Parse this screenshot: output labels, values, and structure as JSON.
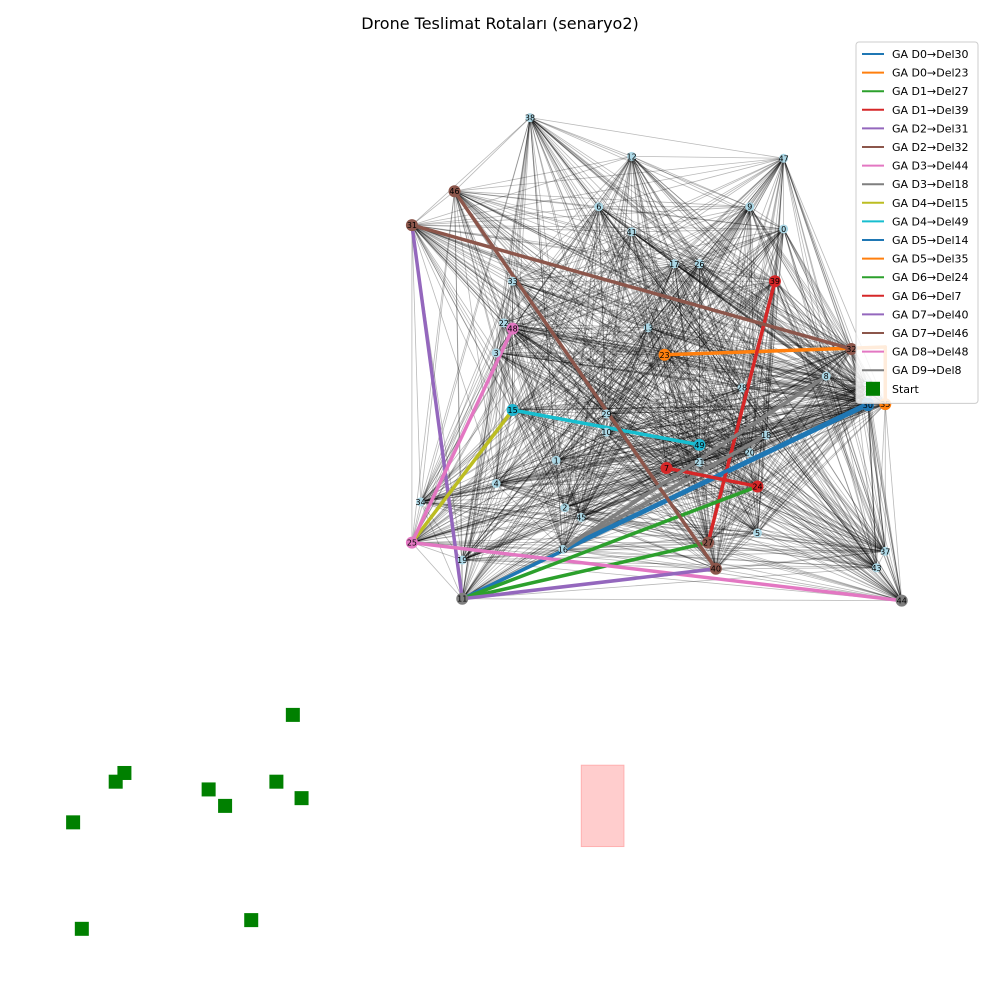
{
  "chart_data": {
    "type": "scatter",
    "title": "Drone Teslimat Rotaları (senaryo2)",
    "xlim": [
      0,
      100
    ],
    "ylim": [
      0,
      100
    ],
    "axes_visible": false,
    "legend_placement": "top-right",
    "colors": {
      "node_fill": "#add8e6",
      "edge": "#000000",
      "start_marker": "#008000",
      "no_fly_zone": "#ffc8c8"
    },
    "nodes": [
      {
        "id": "0",
        "x": 79.3,
        "y": 78.0,
        "color": "#add8e6"
      },
      {
        "id": "1",
        "x": 55.8,
        "y": 54.1,
        "color": "#add8e6"
      },
      {
        "id": "2",
        "x": 56.7,
        "y": 49.2,
        "color": "#add8e6"
      },
      {
        "id": "3",
        "x": 49.6,
        "y": 65.2,
        "color": "#add8e6"
      },
      {
        "id": "4",
        "x": 49.6,
        "y": 51.7,
        "color": "#add8e6"
      },
      {
        "id": "5",
        "x": 76.6,
        "y": 46.6,
        "color": "#add8e6"
      },
      {
        "id": "6",
        "x": 60.2,
        "y": 80.3,
        "color": "#add8e6"
      },
      {
        "id": "7",
        "x": 67.2,
        "y": 53.3,
        "color": "#d62728"
      },
      {
        "id": "8",
        "x": 83.7,
        "y": 62.8,
        "color": "#add8e6"
      },
      {
        "id": "9",
        "x": 75.8,
        "y": 80.3,
        "color": "#add8e6"
      },
      {
        "id": "10",
        "x": 61.0,
        "y": 57.0,
        "color": "#add8e6"
      },
      {
        "id": "11",
        "x": 46.1,
        "y": 39.8,
        "color": "#7f7f7f"
      },
      {
        "id": "12",
        "x": 63.6,
        "y": 85.5,
        "color": "#add8e6"
      },
      {
        "id": "13",
        "x": 65.3,
        "y": 67.8,
        "color": "#add8e6"
      },
      {
        "id": "14",
        "x": 88.0,
        "y": 60.0,
        "color": "#1f77b4"
      },
      {
        "id": "15",
        "x": 51.3,
        "y": 59.3,
        "color": "#1fb4cf"
      },
      {
        "id": "16",
        "x": 56.5,
        "y": 44.9,
        "color": "#add8e6"
      },
      {
        "id": "17",
        "x": 68.0,
        "y": 74.4,
        "color": "#add8e6"
      },
      {
        "id": "18",
        "x": 77.5,
        "y": 56.7,
        "color": "#add8e6"
      },
      {
        "id": "19",
        "x": 46.1,
        "y": 43.8,
        "color": "#add8e6"
      },
      {
        "id": "20",
        "x": 75.8,
        "y": 54.9,
        "color": "#add8e6"
      },
      {
        "id": "21",
        "x": 70.6,
        "y": 53.9,
        "color": "#add8e6"
      },
      {
        "id": "22",
        "x": 50.4,
        "y": 68.3,
        "color": "#add8e6"
      },
      {
        "id": "23",
        "x": 67.0,
        "y": 65.0,
        "color": "#ff7f0e"
      },
      {
        "id": "24",
        "x": 76.6,
        "y": 51.4,
        "color": "#d62728"
      },
      {
        "id": "25",
        "x": 40.9,
        "y": 45.6,
        "color": "#e377c2"
      },
      {
        "id": "26",
        "x": 70.6,
        "y": 74.4,
        "color": "#add8e6"
      },
      {
        "id": "27",
        "x": 71.5,
        "y": 45.6,
        "color": "#8c564b"
      },
      {
        "id": "28",
        "x": 75.0,
        "y": 61.6,
        "color": "#add8e6"
      },
      {
        "id": "29",
        "x": 61.0,
        "y": 58.9,
        "color": "#add8e6"
      },
      {
        "id": "30",
        "x": 88.0,
        "y": 59.8,
        "color": "#1f77b4"
      },
      {
        "id": "31",
        "x": 40.9,
        "y": 78.4,
        "color": "#8c564b"
      },
      {
        "id": "32",
        "x": 86.3,
        "y": 65.6,
        "color": "#8c564b"
      },
      {
        "id": "33",
        "x": 51.3,
        "y": 72.6,
        "color": "#add8e6"
      },
      {
        "id": "34",
        "x": 41.8,
        "y": 49.8,
        "color": "#add8e6"
      },
      {
        "id": "35",
        "x": 89.8,
        "y": 59.9,
        "color": "#ff7f0e"
      },
      {
        "id": "36",
        "x": 88.0,
        "y": 62.0,
        "color": "#add8e6"
      },
      {
        "id": "37",
        "x": 89.8,
        "y": 44.7,
        "color": "#add8e6"
      },
      {
        "id": "38",
        "x": 53.1,
        "y": 89.5,
        "color": "#add8e6"
      },
      {
        "id": "39",
        "x": 78.4,
        "y": 72.6,
        "color": "#d62728"
      },
      {
        "id": "40",
        "x": 72.3,
        "y": 42.9,
        "color": "#8c564b"
      },
      {
        "id": "41",
        "x": 63.6,
        "y": 77.7,
        "color": "#add8e6"
      },
      {
        "id": "42",
        "x": 88.0,
        "y": 61.0,
        "color": "#add8e6"
      },
      {
        "id": "43",
        "x": 88.9,
        "y": 43.0,
        "color": "#add8e6"
      },
      {
        "id": "44",
        "x": 91.5,
        "y": 39.6,
        "color": "#7f7f7f"
      },
      {
        "id": "45",
        "x": 58.4,
        "y": 48.2,
        "color": "#add8e6"
      },
      {
        "id": "46",
        "x": 45.3,
        "y": 81.9,
        "color": "#8c564b"
      },
      {
        "id": "47",
        "x": 79.3,
        "y": 85.3,
        "color": "#add8e6"
      },
      {
        "id": "48",
        "x": 51.3,
        "y": 67.7,
        "color": "#e377c2"
      },
      {
        "id": "49",
        "x": 70.6,
        "y": 55.7,
        "color": "#1fb4cf"
      }
    ],
    "routes": [
      {
        "name": "GA D0→Del30",
        "color": "#1f77b4",
        "path": [
          [
            46.1,
            39.8
          ],
          [
            88.0,
            59.8
          ]
        ]
      },
      {
        "name": "GA D0→Del23",
        "color": "#ff7f0e",
        "path": [
          [
            89.8,
            65.8
          ],
          [
            67.0,
            65.0
          ]
        ]
      },
      {
        "name": "GA D1→Del27",
        "color": "#2ca02c",
        "path": [
          [
            46.1,
            39.8
          ],
          [
            71.5,
            45.6
          ]
        ]
      },
      {
        "name": "GA D1→Del39",
        "color": "#d62728",
        "path": [
          [
            71.5,
            45.6
          ],
          [
            78.4,
            72.6
          ]
        ]
      },
      {
        "name": "GA D2→Del31",
        "color": "#9467bd",
        "path": [
          [
            46.1,
            39.8
          ],
          [
            40.9,
            78.4
          ]
        ]
      },
      {
        "name": "GA D2→Del32",
        "color": "#8c564b",
        "path": [
          [
            40.9,
            78.4
          ],
          [
            86.3,
            65.6
          ]
        ]
      },
      {
        "name": "GA D3→Del44",
        "color": "#e377c2",
        "path": [
          [
            40.9,
            45.6
          ],
          [
            91.5,
            39.6
          ]
        ]
      },
      {
        "name": "GA D3→Del18",
        "color": "#7f7f7f",
        "path": [
          [
            56.5,
            44.9
          ],
          [
            77.5,
            56.7
          ]
        ]
      },
      {
        "name": "GA D4→Del15",
        "color": "#bcbd22",
        "path": [
          [
            40.9,
            45.6
          ],
          [
            51.3,
            59.3
          ]
        ]
      },
      {
        "name": "GA D4→Del49",
        "color": "#17becf",
        "path": [
          [
            51.3,
            59.3
          ],
          [
            70.6,
            55.7
          ]
        ]
      },
      {
        "name": "GA D5→Del14",
        "color": "#1f77b4",
        "path": [
          [
            56.5,
            44.9
          ],
          [
            88.0,
            60.0
          ]
        ]
      },
      {
        "name": "GA D5→Del35",
        "color": "#ff7f0e",
        "path": [
          [
            89.8,
            65.8
          ],
          [
            89.8,
            59.9
          ]
        ]
      },
      {
        "name": "GA D6→Del24",
        "color": "#2ca02c",
        "path": [
          [
            46.1,
            39.8
          ],
          [
            76.6,
            51.4
          ]
        ]
      },
      {
        "name": "GA D6→Del7",
        "color": "#d62728",
        "path": [
          [
            76.6,
            51.4
          ],
          [
            67.2,
            53.3
          ]
        ]
      },
      {
        "name": "GA D7→Del40",
        "color": "#9467bd",
        "path": [
          [
            46.1,
            39.8
          ],
          [
            72.3,
            42.9
          ]
        ]
      },
      {
        "name": "GA D7→Del46",
        "color": "#8c564b",
        "path": [
          [
            72.3,
            42.9
          ],
          [
            45.3,
            81.9
          ]
        ]
      },
      {
        "name": "GA D8→Del48",
        "color": "#e377c2",
        "path": [
          [
            40.9,
            45.6
          ],
          [
            51.3,
            67.7
          ]
        ]
      },
      {
        "name": "GA D9→Del8",
        "color": "#7f7f7f",
        "path": [
          [
            56.5,
            44.9
          ],
          [
            83.7,
            62.8
          ]
        ]
      }
    ],
    "start_points": [
      [
        28.6,
        27.8
      ],
      [
        11.2,
        21.8
      ],
      [
        10.3,
        20.9
      ],
      [
        19.9,
        20.1
      ],
      [
        26.9,
        20.9
      ],
      [
        29.5,
        19.2
      ],
      [
        21.6,
        18.4
      ],
      [
        5.9,
        16.7
      ],
      [
        24.3,
        6.6
      ],
      [
        6.8,
        5.7
      ]
    ],
    "start_label": "Start",
    "no_fly_zones": [
      {
        "x": [
          58.4,
          62.8
        ],
        "y": [
          14.2,
          22.6
        ]
      }
    ]
  }
}
